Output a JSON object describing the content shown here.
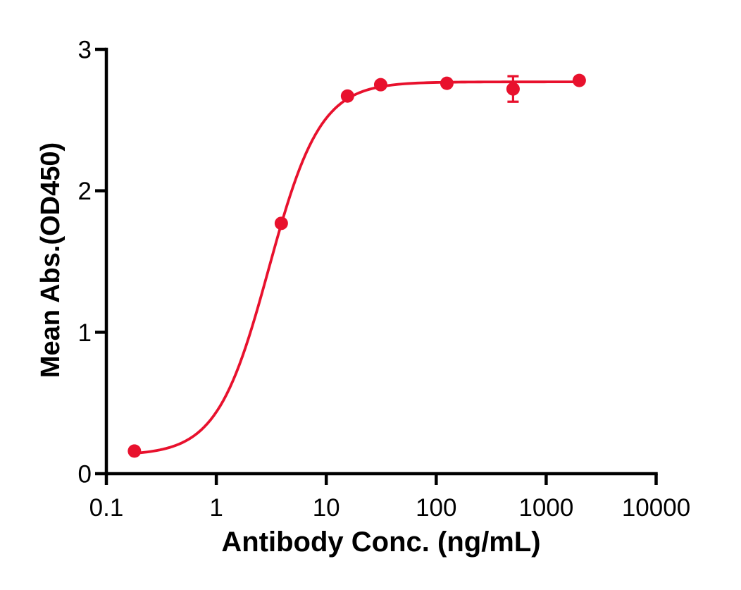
{
  "chart_data": {
    "type": "scatter",
    "subtype": "dose-response-4pl",
    "title": "",
    "xlabel": "Antibody Conc. (ng/mL)",
    "ylabel": "Mean Abs.(OD450)",
    "x_scale": "log10",
    "y_scale": "linear",
    "xlim": [
      0.1,
      10000
    ],
    "ylim": [
      0,
      3
    ],
    "x_ticks": [
      0.1,
      1,
      10,
      100,
      1000,
      10000
    ],
    "x_tick_labels": [
      "0.1",
      "1",
      "10",
      "100",
      "1000",
      "10000"
    ],
    "y_ticks": [
      0,
      1,
      2,
      3
    ],
    "y_tick_labels": [
      "0",
      "1",
      "2",
      "3"
    ],
    "grid": false,
    "legend": null,
    "axis_color": "#000000",
    "background_color": "#ffffff",
    "series": [
      {
        "color": "#e8112d",
        "marker": "circle",
        "x": [
          0.18,
          3.9,
          15.6,
          31.25,
          125,
          500,
          2000
        ],
        "y": [
          0.16,
          1.77,
          2.67,
          2.75,
          2.76,
          2.72,
          2.78
        ],
        "y_err": [
          0,
          0,
          0,
          0,
          0,
          0.09,
          0
        ],
        "fit": {
          "model": "4PL",
          "bottom": 0.13,
          "top": 2.77,
          "ec50": 3.0,
          "hill": 1.85
        }
      }
    ]
  }
}
